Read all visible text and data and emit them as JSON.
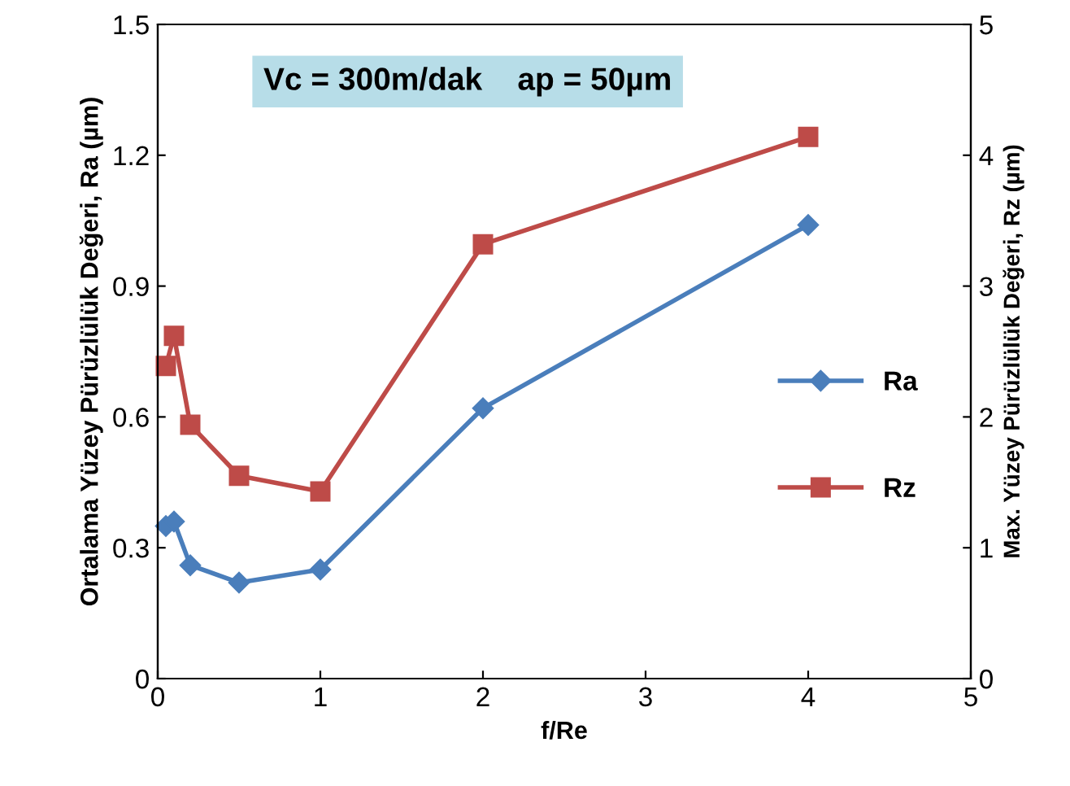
{
  "chart_data": {
    "type": "line",
    "xlabel": "f/Re",
    "ylabel": "Ortalama Yüzey Pürüzlülük Değeri, Ra (µm)",
    "y2label": "Max. Yüzey Pürüzlülük Değeri, Rz (µm)",
    "annotations": [
      "Vc = 300m/dak    ap = 50µm"
    ],
    "x": [
      0.05,
      0.1,
      0.2,
      0.5,
      1,
      2,
      4
    ],
    "series": [
      {
        "name": "Ra",
        "color": "#4a7ebb",
        "marker": "diamond",
        "values": [
          0.35,
          0.36,
          0.26,
          0.22,
          0.25,
          0.62,
          1.04
        ]
      },
      {
        "name": "Rz",
        "color": "#be4b48",
        "marker": "square",
        "axis": "y2",
        "values": [
          2.39,
          2.62,
          1.94,
          1.55,
          1.43,
          3.32,
          4.14
        ]
      }
    ],
    "xlim": [
      0,
      5
    ],
    "xticks": [
      0,
      1,
      2,
      3,
      4,
      5
    ],
    "ylim": [
      0,
      1.5
    ],
    "yticks": [
      0,
      0.3,
      0.6,
      0.9,
      1.2,
      1.5
    ],
    "y2lim": [
      0,
      5
    ],
    "y2ticks": [
      0,
      1,
      2,
      3,
      4,
      5
    ],
    "grid": false,
    "legend": "right",
    "line_style": "solid"
  }
}
